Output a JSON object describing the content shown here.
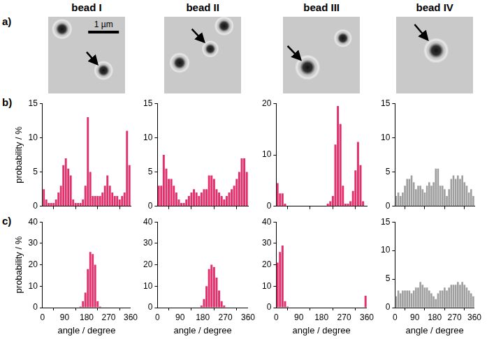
{
  "panel_labels": [
    "a)",
    "b)",
    "c)"
  ],
  "images": [
    {
      "title": "bead I"
    },
    {
      "title": "bead II"
    },
    {
      "title": "bead III"
    },
    {
      "title": "bead IV"
    }
  ],
  "scale_bar": "1 µm",
  "chart_data": [
    {
      "type": "histogram",
      "bins": [
        0,
        10,
        20,
        30,
        40,
        50,
        60,
        70,
        80,
        90,
        100,
        110,
        120,
        130,
        140,
        150,
        160,
        170,
        180,
        190,
        200,
        210,
        220,
        230,
        240,
        250,
        260,
        270,
        280,
        290,
        300,
        310,
        320,
        330,
        340,
        350,
        360
      ],
      "values": [
        2.5,
        1,
        0.5,
        0.5,
        0.5,
        1,
        2,
        3,
        6,
        7,
        5.5,
        4.5,
        1,
        0.5,
        0.5,
        0.5,
        1,
        3,
        13,
        5,
        1.5,
        1.5,
        1.5,
        1.5,
        2,
        3,
        4.5,
        3,
        2,
        1.5,
        1.5,
        1,
        1.5,
        2,
        11,
        6
      ],
      "color": "#e2306c",
      "xlim": [
        0,
        360
      ],
      "xticks": [
        0,
        90,
        180,
        270,
        360
      ],
      "ylim": [
        0,
        15
      ],
      "yticks": [
        0,
        5,
        10,
        15
      ],
      "y_label": "probability / %",
      "grid": false,
      "tick_labels": "y"
    },
    {
      "type": "histogram",
      "bins": [
        0,
        10,
        20,
        30,
        40,
        50,
        60,
        70,
        80,
        90,
        100,
        110,
        120,
        130,
        140,
        150,
        160,
        170,
        180,
        190,
        200,
        210,
        220,
        230,
        240,
        250,
        260,
        270,
        280,
        290,
        300,
        310,
        320,
        330,
        340,
        350,
        360
      ],
      "values": [
        3,
        3,
        7.5,
        5.5,
        4,
        4,
        3,
        2,
        1,
        0.5,
        0.5,
        1,
        1.5,
        2,
        2.5,
        2,
        1.5,
        2,
        2.5,
        2.5,
        4.5,
        4.5,
        4,
        2.5,
        2,
        1.5,
        1,
        1.5,
        2,
        2.5,
        3,
        4,
        5,
        7,
        7,
        5
      ],
      "color": "#e2306c",
      "xlim": [
        0,
        360
      ],
      "xticks": [
        0,
        90,
        180,
        270,
        360
      ],
      "ylim": [
        0,
        15
      ],
      "yticks": [
        0,
        5,
        10,
        15
      ],
      "grid": false,
      "tick_labels": "y"
    },
    {
      "type": "histogram",
      "bins": [
        0,
        10,
        20,
        30,
        40,
        50,
        60,
        70,
        80,
        90,
        100,
        110,
        120,
        130,
        140,
        150,
        160,
        170,
        180,
        190,
        200,
        210,
        220,
        230,
        240,
        250,
        260,
        270,
        280,
        290,
        300,
        310,
        320,
        330,
        340,
        350,
        360
      ],
      "values": [
        4.5,
        2.5,
        2.5,
        0.5,
        0,
        0,
        0,
        0,
        0,
        0,
        0,
        0,
        0,
        0,
        0,
        0,
        0,
        0,
        0,
        0,
        0.5,
        1,
        2,
        12,
        19.5,
        16,
        4,
        0.5,
        0.5,
        1,
        3,
        7,
        12.5,
        8,
        1,
        0
      ],
      "color": "#e2306c",
      "xlim": [
        0,
        360
      ],
      "xticks": [
        0,
        90,
        180,
        270,
        360
      ],
      "ylim": [
        0,
        20
      ],
      "yticks": [
        0,
        10,
        20
      ],
      "grid": false,
      "tick_labels": "y"
    },
    {
      "type": "histogram",
      "bins": [
        0,
        10,
        20,
        30,
        40,
        50,
        60,
        70,
        80,
        90,
        100,
        110,
        120,
        130,
        140,
        150,
        160,
        170,
        180,
        190,
        200,
        210,
        220,
        230,
        240,
        250,
        260,
        270,
        280,
        290,
        300,
        310,
        320,
        330,
        340,
        350,
        360
      ],
      "values": [
        1.5,
        2,
        1.5,
        2,
        3,
        4,
        4,
        4.5,
        3.5,
        2.5,
        3,
        3,
        2.5,
        2,
        3,
        3.5,
        3,
        3.5,
        5.5,
        5.5,
        3,
        3,
        2.5,
        1.5,
        2.5,
        4,
        4.5,
        4,
        4.5,
        4,
        4.5,
        3.5,
        3,
        2,
        2.5,
        1.5
      ],
      "color": "#9e9e9e",
      "xlim": [
        0,
        360
      ],
      "xticks": [
        0,
        90,
        180,
        270,
        360
      ],
      "ylim": [
        0,
        15
      ],
      "yticks": [
        0,
        5,
        10,
        15
      ],
      "grid": false,
      "tick_labels": "y"
    },
    {
      "type": "histogram",
      "bins": [
        0,
        10,
        20,
        30,
        40,
        50,
        60,
        70,
        80,
        90,
        100,
        110,
        120,
        130,
        140,
        150,
        160,
        170,
        180,
        190,
        200,
        210,
        220,
        230,
        240,
        250,
        260,
        270,
        280,
        290,
        300,
        310,
        320,
        330,
        340,
        350,
        360
      ],
      "values": [
        0,
        0,
        0,
        0,
        0,
        0,
        0,
        0,
        0,
        0,
        0,
        0,
        0,
        0,
        0,
        0.5,
        3,
        7,
        18,
        26,
        25,
        20,
        3,
        0.5,
        0,
        0,
        0,
        0,
        0,
        0,
        0,
        0,
        0,
        0,
        0,
        0
      ],
      "color": "#e2306c",
      "xlim": [
        0,
        360
      ],
      "xticks": [
        0,
        90,
        180,
        270,
        360
      ],
      "ylim": [
        0,
        40
      ],
      "yticks": [
        0,
        10,
        20,
        30,
        40
      ],
      "x_label": "angle / degree",
      "y_label": "probability / %",
      "grid": false
    },
    {
      "type": "histogram",
      "bins": [
        0,
        10,
        20,
        30,
        40,
        50,
        60,
        70,
        80,
        90,
        100,
        110,
        120,
        130,
        140,
        150,
        160,
        170,
        180,
        190,
        200,
        210,
        220,
        230,
        240,
        250,
        260,
        270,
        280,
        290,
        300,
        310,
        320,
        330,
        340,
        350,
        360
      ],
      "values": [
        0,
        0,
        0,
        0,
        0,
        0,
        0,
        0,
        0,
        0,
        0,
        0,
        0,
        0,
        0,
        0,
        0,
        1,
        4,
        10,
        18,
        20,
        19,
        14,
        8,
        3,
        1,
        0,
        0,
        0,
        0,
        0,
        0,
        0,
        0,
        0
      ],
      "color": "#e2306c",
      "xlim": [
        0,
        360
      ],
      "xticks": [
        0,
        90,
        180,
        270,
        360
      ],
      "ylim": [
        0,
        40
      ],
      "yticks": [
        0,
        10,
        20,
        30,
        40
      ],
      "x_label": "angle / degree",
      "grid": false
    },
    {
      "type": "histogram",
      "bins": [
        0,
        10,
        20,
        30,
        40,
        50,
        60,
        70,
        80,
        90,
        100,
        110,
        120,
        130,
        140,
        150,
        160,
        170,
        180,
        190,
        200,
        210,
        220,
        230,
        240,
        250,
        260,
        270,
        280,
        290,
        300,
        310,
        320,
        330,
        340,
        350,
        360
      ],
      "values": [
        21,
        26,
        29,
        3,
        0.5,
        0,
        0,
        0,
        0,
        0,
        0,
        0,
        0,
        0,
        0,
        0,
        0,
        0,
        0,
        0,
        0,
        0,
        0,
        0,
        0,
        0,
        0,
        0,
        0,
        0,
        0,
        0,
        0,
        0,
        0,
        5.5
      ],
      "color": "#e2306c",
      "xlim": [
        0,
        360
      ],
      "xticks": [
        0,
        90,
        180,
        270,
        360
      ],
      "ylim": [
        0,
        40
      ],
      "yticks": [
        0,
        10,
        20,
        30,
        40
      ],
      "x_label": "angle / degree",
      "grid": false
    },
    {
      "type": "histogram",
      "bins": [
        0,
        10,
        20,
        30,
        40,
        50,
        60,
        70,
        80,
        90,
        100,
        110,
        120,
        130,
        140,
        150,
        160,
        170,
        180,
        190,
        200,
        210,
        220,
        230,
        240,
        250,
        260,
        270,
        280,
        290,
        300,
        310,
        320,
        330,
        340,
        350,
        360
      ],
      "values": [
        2,
        3,
        2.5,
        3,
        3,
        3,
        3,
        2.5,
        3,
        3.5,
        3.5,
        4.5,
        4,
        3.5,
        3.5,
        3,
        2.5,
        2,
        1.5,
        2.5,
        3,
        3,
        3.5,
        3,
        3.5,
        4,
        4,
        4,
        4.5,
        4,
        4.5,
        4,
        3.5,
        3,
        2.5,
        2
      ],
      "color": "#9e9e9e",
      "xlim": [
        0,
        360
      ],
      "xticks": [
        0,
        90,
        180,
        270,
        360
      ],
      "ylim": [
        0,
        15
      ],
      "yticks": [
        0,
        5,
        10,
        15
      ],
      "x_label": "angle / degree",
      "grid": false
    }
  ]
}
